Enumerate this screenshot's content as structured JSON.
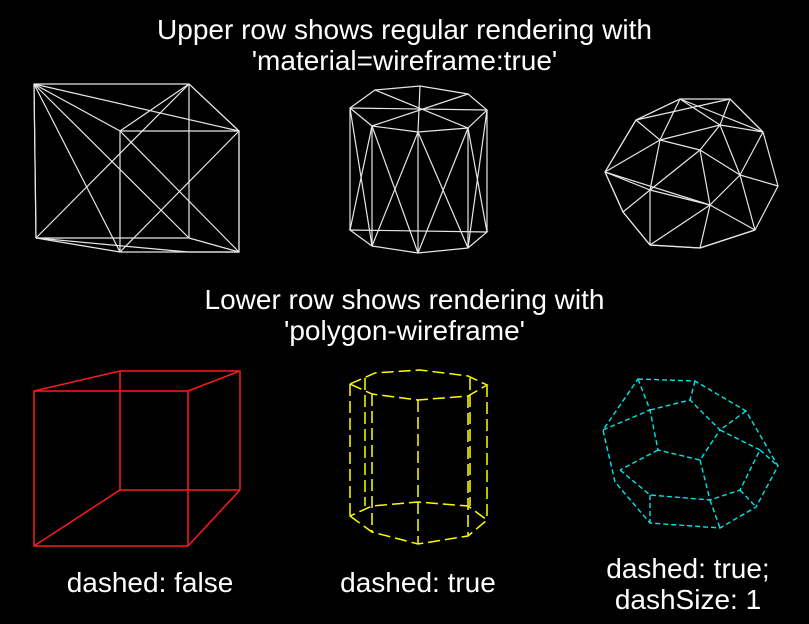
{
  "upper_row": {
    "caption_line1": "Upper row shows regular rendering with",
    "caption_line2": "'material=wireframe:true'"
  },
  "lower_row": {
    "caption_line1": "Lower row shows rendering with",
    "caption_line2": "'polygon-wireframe'",
    "labels": [
      {
        "line1": "dashed: false",
        "line2": ""
      },
      {
        "line1": "dashed: true",
        "line2": ""
      },
      {
        "line1": "dashed: true;",
        "line2": "dashSize: 1"
      }
    ]
  },
  "colors": {
    "background": "#000000",
    "text": "#ffffff",
    "regular_wireframe": "#e6e6e6",
    "cube_polygon_wireframe": "#ff1a1a",
    "cylinder_polygon_wireframe": "#ffff00",
    "dodecahedron_polygon_wireframe": "#00e5e5"
  },
  "shapes": {
    "upper": [
      "cube-wireframe",
      "cylinder-wireframe",
      "icosahedron-wireframe"
    ],
    "lower": [
      "cube-outline",
      "cylinder-dashed",
      "dodecahedron-dashed"
    ]
  }
}
